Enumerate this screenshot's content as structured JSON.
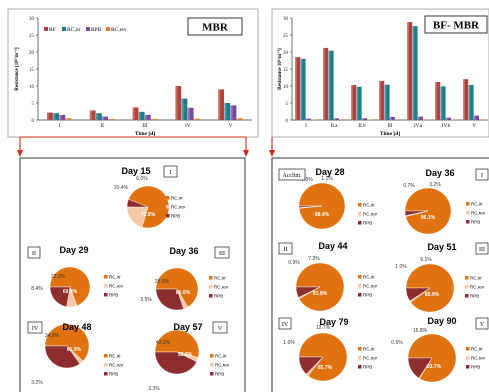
{
  "colors": {
    "RF": "#b3413d",
    "RC_irr": "#1f7a8c",
    "RPB": "#7a4b9c",
    "RC_rev": "#e0802a",
    "pie_rcirr": "#e0720f",
    "pie_rcrev": "#f5c8a8",
    "pie_rpb": "#8e2d2d",
    "arrow": "#d42a1a"
  },
  "charts": {
    "mbr": {
      "title": "MBR",
      "ylabel": "Resistance [10¹²m⁻¹]",
      "xlabel": "Time [d]",
      "legend": [
        "RF",
        "RC,irr",
        "RPB",
        "RC,rev"
      ]
    },
    "bf": {
      "title": "BF- MBR",
      "ylabel": "Resistance 10¹²m⁻¹]",
      "xlabel": "Time [d]",
      "acclim": "Acclim."
    }
  },
  "chart_data": [
    {
      "type": "bar",
      "title": "MBR",
      "xlabel": "Time [d]",
      "ylabel": "Resistance [10¹²m⁻¹]",
      "ylim": [
        0,
        30
      ],
      "yticks": [
        0,
        5,
        10,
        15,
        20,
        25,
        30
      ],
      "categories": [
        "I",
        "II",
        "III",
        "IV",
        "V"
      ],
      "series": [
        {
          "name": "RF",
          "values": [
            2.2,
            2.8,
            3.7,
            10.0,
            9.0
          ]
        },
        {
          "name": "RC,irr",
          "values": [
            2.0,
            2.0,
            2.4,
            6.3,
            5.0
          ]
        },
        {
          "name": "RPB",
          "values": [
            1.5,
            1.0,
            1.5,
            3.6,
            4.3
          ]
        },
        {
          "name": "RC,rev",
          "values": [
            0.5,
            0.3,
            0.3,
            0.4,
            0.5
          ]
        }
      ],
      "legend_position": "top-left"
    },
    {
      "type": "bar",
      "title": "BF- MBR",
      "xlabel": "Time [d]",
      "ylabel": "Resistance 10¹²m⁻¹]",
      "ylim": [
        0,
        30
      ],
      "yticks": [
        0,
        5,
        10,
        15,
        20,
        25,
        30
      ],
      "categories": [
        "I",
        "II.a",
        "II.b",
        "III",
        "IV.a",
        "IV.b",
        "V"
      ],
      "series": [
        {
          "name": "RF",
          "values": [
            18.5,
            21.2,
            10.3,
            11.5,
            28.8,
            11.2,
            12.0
          ]
        },
        {
          "name": "RC,irr",
          "values": [
            18.0,
            20.4,
            9.8,
            10.4,
            27.6,
            9.9,
            10.3
          ]
        },
        {
          "name": "RPB",
          "values": [
            0.4,
            0.5,
            0.5,
            0.9,
            1.0,
            0.7,
            1.3
          ]
        },
        {
          "name": "RC,rev",
          "values": [
            0.1,
            0.2,
            0.1,
            0.2,
            0.2,
            0.1,
            0.2
          ]
        }
      ],
      "legend_position": "none"
    },
    {
      "type": "pie",
      "group": "MBR",
      "pies": [
        {
          "day": "Day 15",
          "phase": "I",
          "rc_irr": 73.6,
          "rc_rev": 20.4,
          "rpb": 6.0,
          "labels": [
            "73.6%",
            "20.4%",
            "6.0%"
          ]
        },
        {
          "day": "Day 29",
          "phase": "II",
          "rc_irr": 69.3,
          "rc_rev": 8.4,
          "rpb": 22.3,
          "labels": [
            "69.3%",
            "8.4%",
            "22.3%"
          ]
        },
        {
          "day": "Day 36",
          "phase": "III",
          "rc_irr": 66.0,
          "rc_rev": 3.5,
          "rpb": 29.9,
          "labels": [
            "66.0%",
            "3.5%",
            "29.9%"
          ]
        },
        {
          "day": "Day 48",
          "phase": "IV",
          "rc_irr": 61.9,
          "rc_rev": 3.2,
          "rpb": 34.9,
          "labels": [
            "61.9%",
            "3.2%",
            "34.9%"
          ]
        },
        {
          "day": "Day 57",
          "phase": "V",
          "rc_irr": 53.6,
          "rc_rev": 3.3,
          "rpb": 42.3,
          "labels": [
            "53.6%",
            "3.3%",
            "42.3%"
          ]
        }
      ],
      "legend": [
        "RC,irr",
        "RC,rev",
        "RPB"
      ]
    },
    {
      "type": "pie",
      "group": "BF- MBR",
      "pies": [
        {
          "day": "Day 28",
          "phase": "Acclim.",
          "rc_irr": 98.4,
          "rc_rev": 0.5,
          "rpb": 1.1,
          "labels": [
            "98.4%",
            "0.5%",
            "1.1%"
          ]
        },
        {
          "day": "Day 36",
          "phase": "I",
          "rc_irr": 96.1,
          "rc_rev": 0.7,
          "rpb": 3.2,
          "labels": [
            "96.1%",
            "0.7%",
            "3.2%"
          ]
        },
        {
          "day": "Day 44",
          "phase": "II",
          "rc_irr": 91.9,
          "rc_rev": 0.9,
          "rpb": 7.2,
          "labels": [
            "91.9%",
            "0.9%",
            "7.2%"
          ]
        },
        {
          "day": "Day 51",
          "phase": "III",
          "rc_irr": 89.9,
          "rc_rev": 1.0,
          "rpb": 9.1,
          "labels": [
            "89.9%",
            "1.0%",
            "9.1%"
          ]
        },
        {
          "day": "Day 79",
          "phase": "IV",
          "rc_irr": 85.7,
          "rc_rev": 1.6,
          "rpb": 12.7,
          "labels": [
            "85.7%",
            "1.6%",
            "12.7%"
          ]
        },
        {
          "day": "Day 90",
          "phase": "V",
          "rc_irr": 83.7,
          "rc_rev": 0.5,
          "rpb": 15.8,
          "labels": [
            "83.7%",
            "0.5%",
            "15.8%"
          ]
        }
      ],
      "legend": [
        "RC,irr",
        "RC,rev",
        "RPB"
      ]
    }
  ]
}
